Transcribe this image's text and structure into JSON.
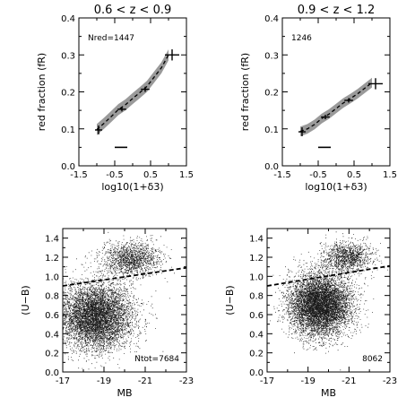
{
  "chart_data": [
    {
      "type": "line",
      "title": "0.6 < z < 0.9",
      "xlabel": "log10(1+δ3)",
      "ylabel": "red fraction (fR)",
      "xlim": [
        -1.5,
        1.5
      ],
      "ylim": [
        0.0,
        0.4
      ],
      "xticks": [
        "-1.5",
        "-0.5",
        "0.5",
        "1.5"
      ],
      "yticks": [
        "0.0",
        "0.1",
        "0.2",
        "0.3",
        "0.4"
      ],
      "annotation": "Nred=1447",
      "series": [
        {
          "x": [
            -1.0,
            -0.8,
            -0.6,
            -0.4,
            -0.2,
            0.0,
            0.2,
            0.4,
            0.6,
            0.8,
            1.0
          ],
          "y": [
            0.098,
            0.115,
            0.133,
            0.152,
            0.165,
            0.182,
            0.198,
            0.215,
            0.24,
            0.265,
            0.3
          ],
          "band_half_width": 0.015
        }
      ],
      "points": [
        {
          "x": -0.95,
          "y": 0.097,
          "xerr": 0.1,
          "yerr": 0.012
        },
        {
          "x": -0.3,
          "y": 0.153,
          "xerr": 0.12,
          "yerr": 0.006
        },
        {
          "x": 0.35,
          "y": 0.207,
          "xerr": 0.12,
          "yerr": 0.007
        },
        {
          "x": 1.1,
          "y": 0.3,
          "xerr": 0.2,
          "yerr": 0.015
        }
      ],
      "scale_bar": {
        "x": [
          -0.5,
          -0.15
        ],
        "y": 0.05
      }
    },
    {
      "type": "line",
      "title": "0.9 < z < 1.2",
      "xlabel": "log10(1+δ3)",
      "ylabel": "red fraction (fR)",
      "xlim": [
        -1.5,
        1.5
      ],
      "ylim": [
        0.0,
        0.4
      ],
      "xticks": [
        "-1.5",
        "-0.5",
        "0.5",
        "1.5"
      ],
      "yticks": [
        "0.0",
        "0.1",
        "0.2",
        "0.3",
        "0.4"
      ],
      "annotation": "1246",
      "series": [
        {
          "x": [
            -1.0,
            -0.8,
            -0.6,
            -0.4,
            -0.2,
            0.0,
            0.2,
            0.4,
            0.6,
            0.8,
            1.0
          ],
          "y": [
            0.093,
            0.1,
            0.112,
            0.128,
            0.14,
            0.155,
            0.17,
            0.182,
            0.195,
            0.21,
            0.225
          ],
          "band_half_width": 0.013
        }
      ],
      "points": [
        {
          "x": -0.95,
          "y": 0.092,
          "xerr": 0.1,
          "yerr": 0.012
        },
        {
          "x": -0.3,
          "y": 0.132,
          "xerr": 0.12,
          "yerr": 0.006
        },
        {
          "x": 0.35,
          "y": 0.177,
          "xerr": 0.12,
          "yerr": 0.006
        },
        {
          "x": 1.1,
          "y": 0.222,
          "xerr": 0.2,
          "yerr": 0.015
        }
      ],
      "scale_bar": {
        "x": [
          -0.5,
          -0.15
        ],
        "y": 0.05
      }
    },
    {
      "type": "scatter",
      "title": "",
      "xlabel": "MB",
      "ylabel": "(U−B)",
      "xlim": [
        -17,
        -23
      ],
      "ylim": [
        0.0,
        1.5
      ],
      "xticks": [
        "-17",
        "-19",
        "-21",
        "-23"
      ],
      "yticks": [
        "0.0",
        "0.2",
        "0.4",
        "0.6",
        "0.8",
        "1.0",
        "1.2",
        "1.4"
      ],
      "annotation": "Ntot=7684",
      "divider_line": {
        "x": [
          -17,
          -23
        ],
        "y": [
          0.9,
          1.09
        ]
      },
      "point_count": 7684,
      "clouds": [
        {
          "name": "blue",
          "mean_x": -18.6,
          "mean_y": 0.58,
          "sd_x": 0.9,
          "sd_y": 0.17,
          "fraction": 0.81
        },
        {
          "name": "red",
          "mean_x": -20.3,
          "mean_y": 1.18,
          "sd_x": 0.7,
          "sd_y": 0.09,
          "fraction": 0.19
        }
      ]
    },
    {
      "type": "scatter",
      "title": "",
      "xlabel": "MB",
      "ylabel": "(U−B)",
      "xlim": [
        -17,
        -23
      ],
      "ylim": [
        0.0,
        1.5
      ],
      "xticks": [
        "-17",
        "-19",
        "-21",
        "-23"
      ],
      "yticks": [
        "0.0",
        "0.2",
        "0.4",
        "0.6",
        "0.8",
        "1.0",
        "1.2",
        "1.4"
      ],
      "annotation": "8062",
      "divider_line": {
        "x": [
          -17,
          -23
        ],
        "y": [
          0.9,
          1.11
        ]
      },
      "point_count": 8062,
      "clouds": [
        {
          "name": "blue",
          "mean_x": -19.6,
          "mean_y": 0.7,
          "sd_x": 0.75,
          "sd_y": 0.16,
          "fraction": 0.85
        },
        {
          "name": "red",
          "mean_x": -20.9,
          "mean_y": 1.2,
          "sd_x": 0.6,
          "sd_y": 0.08,
          "fraction": 0.15
        }
      ]
    }
  ]
}
